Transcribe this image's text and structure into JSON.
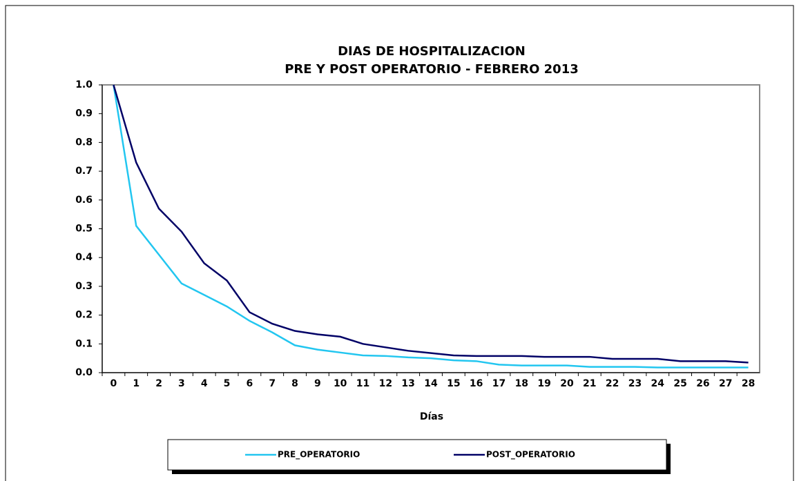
{
  "chart_data": {
    "type": "line",
    "title": [
      "DIAS DE HOSPITALIZACION",
      "PRE Y POST OPERATORIO  -  FEBRERO 2013"
    ],
    "x_label": "Días",
    "categories": [
      "0",
      "1",
      "2",
      "3",
      "4",
      "5",
      "6",
      "7",
      "8",
      "9",
      "10",
      "11",
      "12",
      "13",
      "14",
      "15",
      "16",
      "17",
      "18",
      "19",
      "20",
      "21",
      "22",
      "23",
      "24",
      "25",
      "26",
      "27",
      "28"
    ],
    "series": [
      {
        "name": "PRE_OPERATORIO",
        "color": "#22c6f0",
        "values": [
          1.0,
          0.51,
          0.41,
          0.31,
          0.27,
          0.23,
          0.18,
          0.14,
          0.095,
          0.08,
          0.07,
          0.06,
          0.058,
          0.053,
          0.05,
          0.043,
          0.04,
          0.028,
          0.025,
          0.025,
          0.025,
          0.02,
          0.02,
          0.02,
          0.018,
          0.018,
          0.018,
          0.018,
          0.018
        ]
      },
      {
        "name": "POST_OPERATORIO",
        "color": "#000066",
        "values": [
          1.0,
          0.73,
          0.57,
          0.49,
          0.38,
          0.32,
          0.21,
          0.17,
          0.145,
          0.133,
          0.125,
          0.1,
          0.088,
          0.076,
          0.068,
          0.06,
          0.058,
          0.058,
          0.058,
          0.055,
          0.055,
          0.055,
          0.048,
          0.048,
          0.048,
          0.04,
          0.04,
          0.04,
          0.035
        ]
      }
    ],
    "ylim": [
      0,
      1
    ],
    "yticks": [
      {
        "value": 0,
        "label": "0.0"
      },
      0.1,
      0.2,
      0.3,
      0.4,
      0.5,
      0.6,
      0.7,
      0.8,
      0.9,
      {
        "value": 1,
        "label": "1.0"
      }
    ],
    "grid": false,
    "legend": "bottom"
  }
}
